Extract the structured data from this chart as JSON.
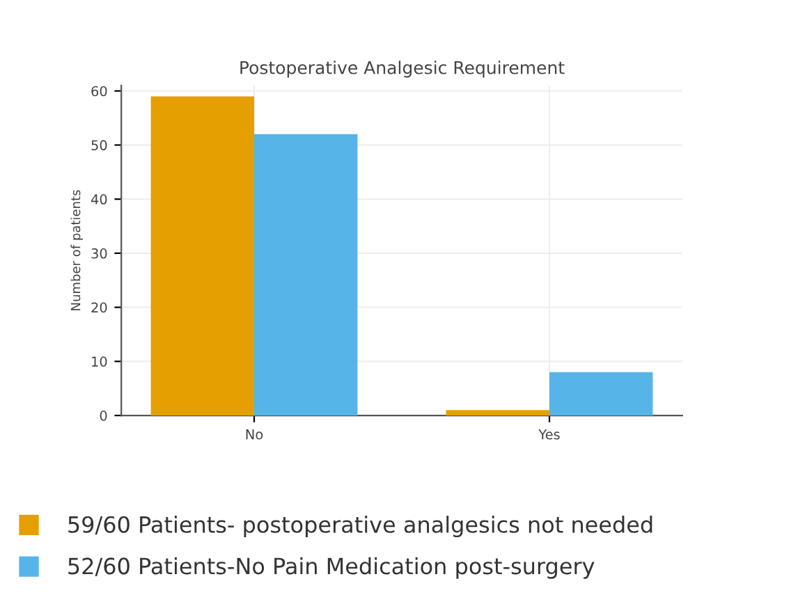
{
  "chart_data": {
    "type": "bar",
    "title": "Postoperative Analgesic Requirement",
    "ylabel": "Number of patients",
    "categories": [
      "No",
      "Yes"
    ],
    "series": [
      {
        "name": "59/60 Patients- postoperative analgesics not needed",
        "color": "#e69f00",
        "values": [
          59,
          1
        ]
      },
      {
        "name": "52/60 Patients-No Pain Medication post-surgery",
        "color": "#56b4e9",
        "values": [
          52,
          8
        ]
      }
    ],
    "ylim": [
      0,
      61
    ],
    "yticks": [
      0,
      10,
      20,
      30,
      40,
      50,
      60
    ],
    "grid": true,
    "legend": "bottom"
  }
}
